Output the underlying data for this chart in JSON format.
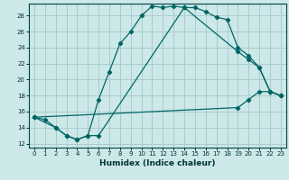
{
  "xlabel": "Humidex (Indice chaleur)",
  "bg_color": "#cce8e8",
  "grid_color": "#aacccc",
  "line_color": "#006666",
  "xlim": [
    -0.5,
    23.5
  ],
  "ylim": [
    11.5,
    29.5
  ],
  "xticks": [
    0,
    1,
    2,
    3,
    4,
    5,
    6,
    7,
    8,
    9,
    10,
    11,
    12,
    13,
    14,
    15,
    16,
    17,
    18,
    19,
    20,
    21,
    22,
    23
  ],
  "yticks": [
    12,
    14,
    16,
    18,
    20,
    22,
    24,
    26,
    28
  ],
  "line1_x": [
    0,
    1,
    2,
    3,
    4,
    5,
    6,
    7,
    8,
    9,
    10,
    11,
    12,
    13,
    14,
    15,
    16,
    17,
    18,
    19,
    20,
    21,
    22,
    23
  ],
  "line1_y": [
    15.3,
    15.0,
    14.0,
    13.0,
    12.5,
    13.0,
    17.5,
    21.0,
    24.5,
    26.0,
    28.0,
    29.2,
    29.0,
    29.2,
    29.0,
    29.0,
    28.5,
    27.8,
    27.5,
    24.0,
    23.0,
    21.5,
    18.5,
    18.0
  ],
  "line2_x": [
    0,
    2,
    3,
    4,
    5,
    6,
    14,
    19,
    20,
    21,
    22,
    23
  ],
  "line2_y": [
    15.3,
    14.0,
    13.0,
    12.5,
    13.0,
    13.0,
    29.0,
    23.5,
    22.5,
    21.5,
    18.5,
    18.0
  ],
  "line3_x": [
    0,
    19,
    20,
    21,
    22,
    23
  ],
  "line3_y": [
    15.3,
    16.5,
    17.5,
    18.5,
    18.5,
    18.0
  ],
  "tick_fontsize": 5.0,
  "xlabel_fontsize": 6.5
}
